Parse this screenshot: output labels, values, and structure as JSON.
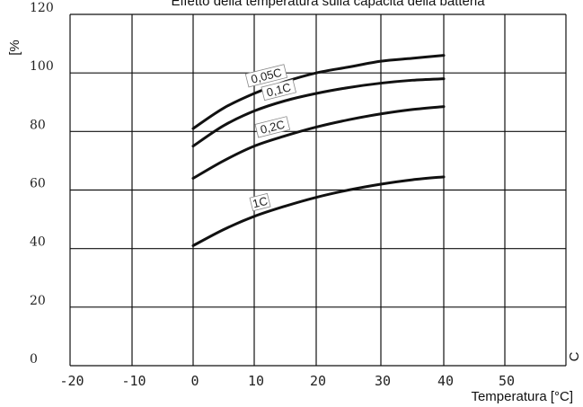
{
  "chart_data": {
    "type": "line",
    "title": "Effetto della temperatura sulla capacità della batteria",
    "xlabel": "Temperatura [°C]",
    "ylabel": "[%",
    "xlim": [
      -20,
      60
    ],
    "ylim": [
      0,
      120
    ],
    "x_ticks": [
      "-20",
      "-10",
      "0",
      "10",
      "20",
      "30",
      "40",
      "50"
    ],
    "y_ticks": [
      "0",
      "20",
      "40",
      "60",
      "80",
      "100",
      "120"
    ],
    "right_edge_text": "C",
    "grid": true,
    "x": [
      0,
      5,
      10,
      15,
      20,
      25,
      30,
      35,
      40
    ],
    "series": [
      {
        "name": "0,05C",
        "values": [
          81,
          88,
          93,
          97,
          100,
          102,
          104,
          105,
          106
        ]
      },
      {
        "name": "0,1C",
        "values": [
          75,
          82,
          87,
          90.5,
          93,
          95,
          96.5,
          97.5,
          98
        ]
      },
      {
        "name": "0,2C",
        "values": [
          64,
          70,
          75,
          78.5,
          81.5,
          84,
          86,
          87.5,
          88.5
        ]
      },
      {
        "name": "1C",
        "values": [
          41,
          46.5,
          51,
          54.5,
          57.5,
          60,
          62,
          63.5,
          64.5
        ]
      }
    ]
  }
}
